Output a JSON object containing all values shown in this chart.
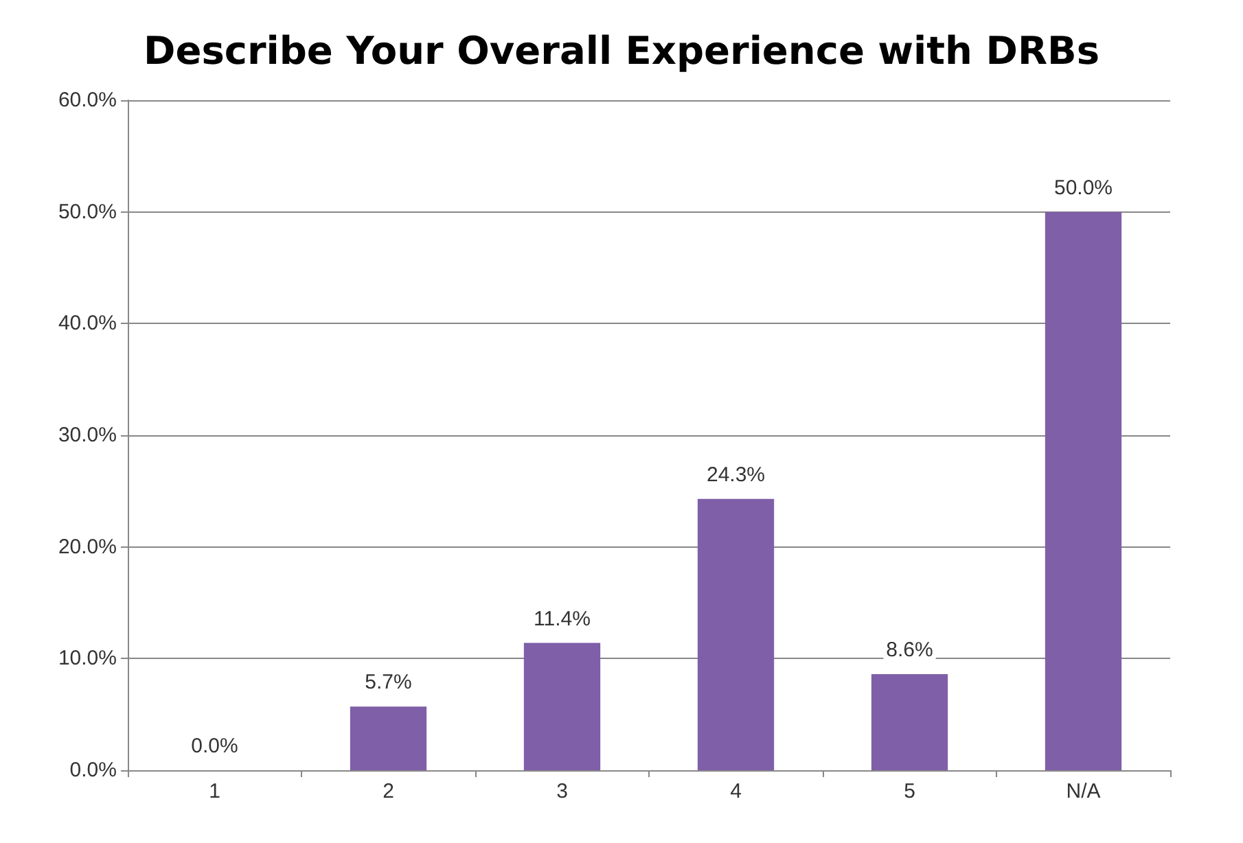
{
  "chart_data": {
    "type": "bar",
    "title": "Describe Your Overall Experience with DRBs",
    "categories": [
      "1",
      "2",
      "3",
      "4",
      "5",
      "N/A"
    ],
    "values": [
      0,
      5.7,
      11.4,
      24.3,
      8.6,
      50
    ],
    "value_labels": [
      "0.0%",
      "5.7%",
      "11.4%",
      "24.3%",
      "8.6%",
      "50.0%"
    ],
    "color": "#7f5fa8",
    "ylim": [
      0,
      60
    ],
    "yticks": [
      {
        "value": 0,
        "label": "0.0%"
      },
      {
        "value": 10,
        "label": "10.0%"
      },
      {
        "value": 20,
        "label": "20.0%"
      },
      {
        "value": 30,
        "label": "30.0%"
      },
      {
        "value": 40,
        "label": "40.0%"
      },
      {
        "value": 50,
        "label": "50.0%"
      },
      {
        "value": 60,
        "label": "60.0%"
      }
    ],
    "grid": "y"
  }
}
